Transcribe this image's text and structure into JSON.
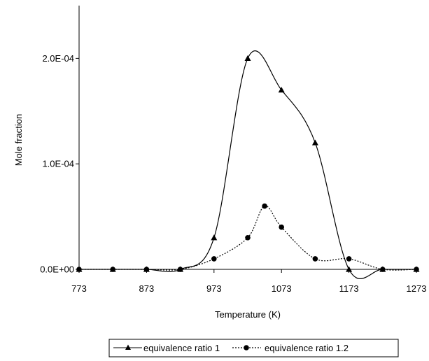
{
  "chart_data": {
    "type": "line",
    "title": "",
    "xlabel": "Temperature (K)",
    "ylabel": "Mole fraction",
    "xlim": [
      773,
      1273
    ],
    "ylim": [
      0,
      0.00025
    ],
    "x_ticks": [
      "773",
      "873",
      "973",
      "1073",
      "1173",
      "1273"
    ],
    "y_ticks": [
      "0.0E+00",
      "1.0E-04",
      "2.0E-04"
    ],
    "grid": false,
    "legend_position": "bottom",
    "series": [
      {
        "name": "equivalence ratio 1",
        "marker": "triangle",
        "line_style": "solid",
        "color": "#000000",
        "x": [
          773,
          823,
          873,
          923,
          973,
          1023,
          1073,
          1123,
          1173,
          1223,
          1273
        ],
        "y": [
          0,
          0,
          0,
          0,
          3e-05,
          0.0002,
          0.00017,
          0.00012,
          0,
          0,
          0
        ]
      },
      {
        "name": "equivalence ratio 1.2",
        "marker": "circle",
        "line_style": "dotted",
        "color": "#000000",
        "x": [
          773,
          823,
          873,
          923,
          973,
          1023,
          1048,
          1073,
          1123,
          1173,
          1223,
          1273
        ],
        "y": [
          0,
          0,
          0,
          0,
          1e-05,
          3e-05,
          6e-05,
          4e-05,
          1e-05,
          1e-05,
          0,
          0
        ]
      }
    ]
  }
}
